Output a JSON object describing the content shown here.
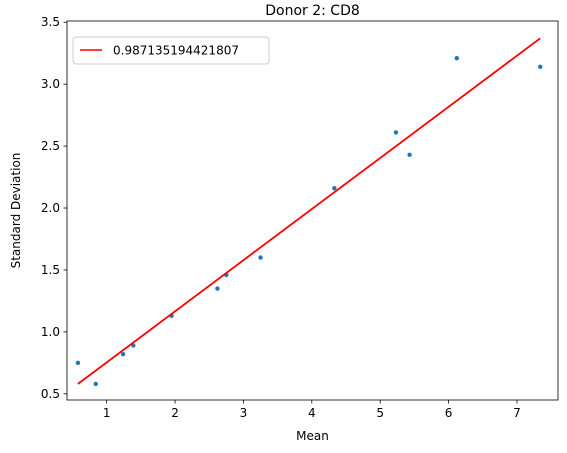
{
  "chart_data": {
    "type": "scatter",
    "title": "Donor 2: CD8",
    "xlabel": "Mean",
    "ylabel": "Standard Deviation",
    "xlim": [
      0.42,
      7.6
    ],
    "ylim": [
      0.45,
      3.51
    ],
    "x_ticks": [
      1,
      2,
      3,
      4,
      5,
      6,
      7
    ],
    "x_tick_labels": [
      "1",
      "2",
      "3",
      "4",
      "5",
      "6",
      "7"
    ],
    "y_ticks": [
      0.5,
      1.0,
      1.5,
      2.0,
      2.5,
      3.0,
      3.5
    ],
    "y_tick_labels": [
      "0.5",
      "1.0",
      "1.5",
      "2.0",
      "2.5",
      "3.0",
      "3.5"
    ],
    "grid": false,
    "legend_position": "upper-left",
    "series": [
      {
        "kind": "points",
        "color": "#1f77b4",
        "x": [
          0.58,
          0.84,
          1.24,
          1.39,
          1.95,
          2.62,
          2.75,
          3.25,
          4.33,
          5.23,
          5.43,
          6.12,
          7.34
        ],
        "y": [
          0.75,
          0.58,
          0.82,
          0.89,
          1.13,
          1.35,
          1.46,
          1.6,
          2.16,
          2.61,
          2.43,
          3.21,
          3.14
        ]
      },
      {
        "kind": "fit-line",
        "name": "0.987135194421807",
        "color": "#ff0000",
        "x": [
          0.58,
          7.34
        ],
        "y": [
          0.58,
          3.37
        ]
      }
    ]
  }
}
